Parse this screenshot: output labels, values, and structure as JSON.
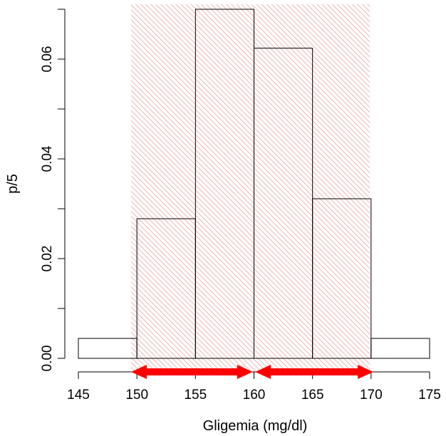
{
  "chart_data": {
    "type": "bar",
    "xlabel": "Gligemia (mg/dl)",
    "ylabel": "p/5",
    "xlim": [
      145,
      175
    ],
    "ylim": [
      0,
      0.07
    ],
    "x_ticks": [
      "145",
      "150",
      "155",
      "160",
      "165",
      "170",
      "175"
    ],
    "y_ticks": [
      "0.00",
      "0.02",
      "0.04",
      "0.06"
    ],
    "bins": [
      {
        "from": 145,
        "to": 150,
        "value": 0.004
      },
      {
        "from": 150,
        "to": 155,
        "value": 0.028
      },
      {
        "from": 155,
        "to": 160,
        "value": 0.07
      },
      {
        "from": 160,
        "to": 165,
        "value": 0.0622
      },
      {
        "from": 165,
        "to": 170,
        "value": 0.032
      },
      {
        "from": 170,
        "to": 175,
        "value": 0.004
      }
    ],
    "shaded_region": {
      "from": 149.5,
      "to": 169.9
    },
    "arrows": [
      {
        "from": 149.5,
        "to": 159.9
      },
      {
        "from": 160.1,
        "to": 170.2
      }
    ],
    "grid": false,
    "colors": {
      "bar_edge": "#000000",
      "bar_fill": "#ffffff",
      "shade_hatch": "#e8a0a0",
      "arrow": "#ff0000"
    }
  }
}
